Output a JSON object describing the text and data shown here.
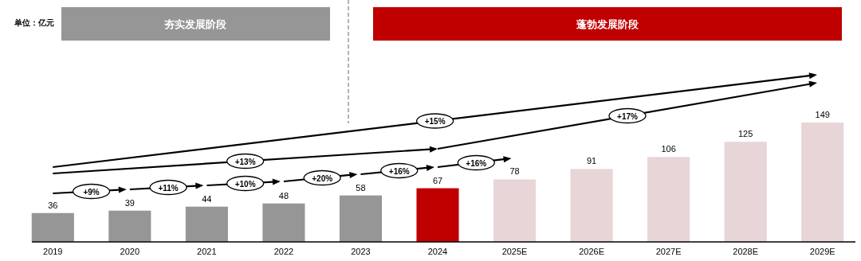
{
  "chart_data": {
    "type": "bar",
    "categories": [
      "2019",
      "2020",
      "2021",
      "2022",
      "2023",
      "2024",
      "2025E",
      "2026E",
      "2027E",
      "2028E",
      "2029E"
    ],
    "values": [
      36,
      39,
      44,
      48,
      58,
      67,
      78,
      91,
      106,
      125,
      149
    ],
    "colors": [
      "#969696",
      "#969696",
      "#969696",
      "#969696",
      "#969696",
      "#c00000",
      "#e8d5d8",
      "#e8d5d8",
      "#e8d5d8",
      "#e8d5d8",
      "#e8d5d8"
    ],
    "data_labels": true,
    "tick_labels": "x",
    "annotations": [
      "单位：亿元",
      "夯实发展阶段",
      "蓬勃发展阶段",
      "+9%",
      "+11%",
      "+10%",
      "+20%",
      "+16%",
      "+16%",
      "+13%",
      "+15%",
      "+17%"
    ]
  }
}
